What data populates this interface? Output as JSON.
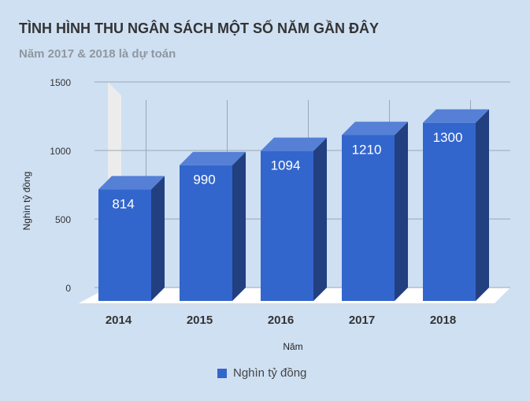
{
  "chart_data": {
    "type": "bar",
    "title": "TÌNH HÌNH THU NGÂN SÁCH MỘT SỐ NĂM GẦN ĐÂY",
    "subtitle": "Năm 2017 & 2018 là dự toán",
    "xlabel": "Năm",
    "ylabel": "Nghìn tỷ đồng",
    "categories": [
      "2014",
      "2015",
      "2016",
      "2017",
      "2018"
    ],
    "series": [
      {
        "name": "Nghìn tỷ đồng",
        "values": [
          814,
          990,
          1094,
          1210,
          1300
        ]
      }
    ],
    "ylim": [
      0,
      1500
    ],
    "yticks": [
      "0",
      "500",
      "1000",
      "1500"
    ],
    "grid": true,
    "legend_position": "bottom",
    "colors": {
      "bar_front": "#3366cc",
      "bar_top": "#5580d6",
      "bar_side": "#223f80",
      "grid": "#9aa7b5",
      "floor": "#ffffff",
      "back_wall": "#ececec"
    }
  }
}
